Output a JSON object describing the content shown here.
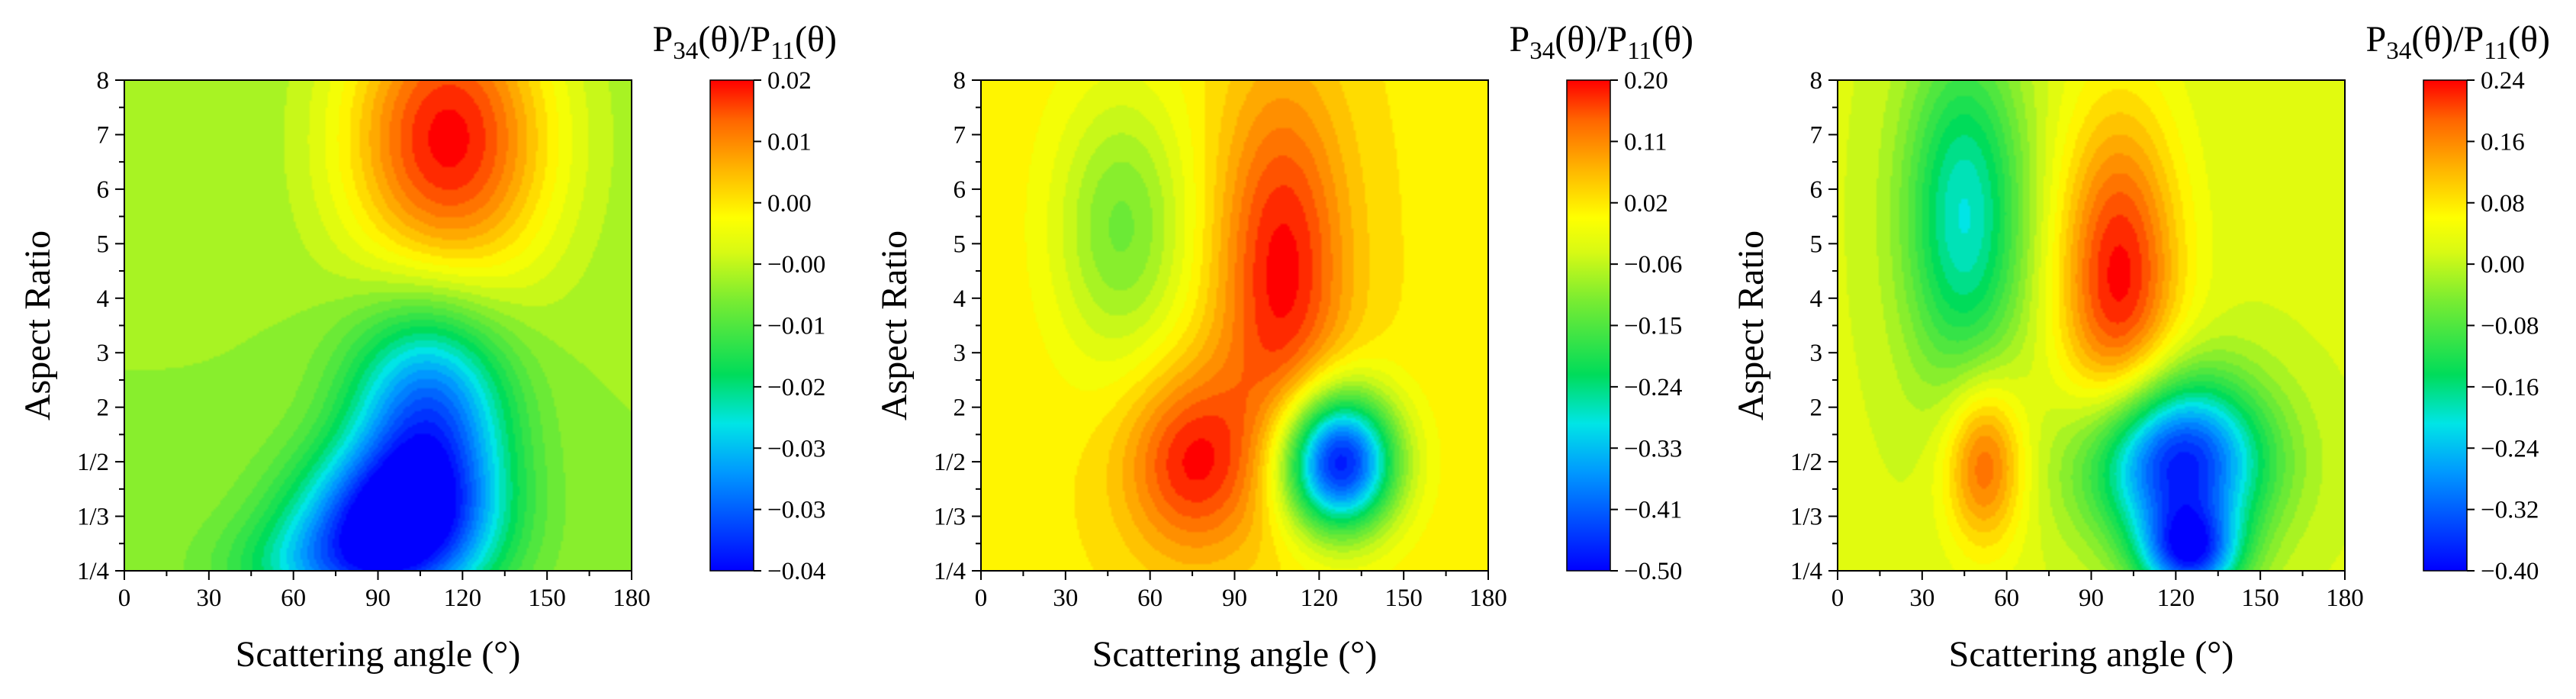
{
  "chart_data": [
    {
      "type": "heatmap",
      "title": "",
      "xlabel": "Scattering angle (°)",
      "ylabel": "Aspect Ratio",
      "colorbar_title": "P34(θ)/P11(θ)",
      "colorbar_title_parts": {
        "p": "P",
        "sub1": "34",
        "mid": "(θ)/P",
        "sub2": "11",
        "end": "(θ)"
      },
      "xlim": [
        0,
        180
      ],
      "x_ticks": [
        "0",
        "30",
        "60",
        "90",
        "120",
        "150",
        "180"
      ],
      "y_ticks": [
        "1/4",
        "1/3",
        "1/2",
        "2",
        "3",
        "4",
        "5",
        "6",
        "7",
        "8"
      ],
      "colorbar_range": [
        -0.04,
        0.02
      ],
      "colorbar_ticks": [
        "0.02",
        "0.01",
        "0.00",
        "−0.00",
        "−0.01",
        "−0.02",
        "−0.03",
        "−0.03",
        "−0.04"
      ],
      "features": [
        {
          "x": 115,
          "y": 7.9,
          "value": 0.02,
          "sx": 26,
          "sy": 2.0
        },
        {
          "x": 108,
          "y": 2.8,
          "value": -0.034,
          "sx": 20,
          "sy": 1.5
        },
        {
          "x": 95,
          "y": 1.0,
          "value": -0.034,
          "sx": 24,
          "sy": 0.9
        },
        {
          "x": 80,
          "y": 0.0,
          "value": -0.022,
          "sx": 28,
          "sy": 0.7
        }
      ],
      "background": -0.005
    },
    {
      "type": "heatmap",
      "title": "",
      "xlabel": "Scattering angle (°)",
      "ylabel": "Aspect Ratio",
      "colorbar_title": "P34(θ)/P11(θ)",
      "colorbar_title_parts": {
        "p": "P",
        "sub1": "34",
        "mid": "(θ)/P",
        "sub2": "11",
        "end": "(θ)"
      },
      "xlim": [
        0,
        180
      ],
      "x_ticks": [
        "0",
        "30",
        "60",
        "90",
        "120",
        "150",
        "180"
      ],
      "y_ticks": [
        "1/4",
        "1/3",
        "1/2",
        "2",
        "3",
        "4",
        "5",
        "6",
        "7",
        "8"
      ],
      "colorbar_range": [
        -0.5,
        0.2
      ],
      "colorbar_ticks": [
        "0.20",
        "0.11",
        "0.02",
        "−0.06",
        "−0.15",
        "−0.24",
        "−0.33",
        "−0.41",
        "−0.50"
      ],
      "features": [
        {
          "x": 107,
          "y": 5.5,
          "value": 0.2,
          "sx": 16,
          "sy": 2.4
        },
        {
          "x": 75,
          "y": 2.0,
          "value": 0.19,
          "sx": 17,
          "sy": 1.2
        },
        {
          "x": 127,
          "y": 2.0,
          "value": -0.5,
          "sx": 14,
          "sy": 0.9
        },
        {
          "x": 50,
          "y": 6.3,
          "value": -0.12,
          "sx": 17,
          "sy": 1.8
        }
      ],
      "background": 0.02
    },
    {
      "type": "heatmap",
      "title": "",
      "xlabel": "Scattering angle (°)",
      "ylabel": "Aspect Ratio",
      "colorbar_title": "P34(θ)/P11(θ)",
      "colorbar_title_parts": {
        "p": "P",
        "sub1": "34",
        "mid": "(θ)/P",
        "sub2": "11",
        "end": "(θ)"
      },
      "xlim": [
        0,
        180
      ],
      "x_ticks": [
        "0",
        "30",
        "60",
        "90",
        "120",
        "150",
        "180"
      ],
      "y_ticks": [
        "1/4",
        "1/3",
        "1/2",
        "2",
        "3",
        "4",
        "5",
        "6",
        "7",
        "8"
      ],
      "colorbar_range": [
        -0.4,
        0.24
      ],
      "colorbar_ticks": [
        "0.24",
        "0.16",
        "0.08",
        "0.00",
        "−0.08",
        "−0.16",
        "−0.24",
        "−0.32",
        "−0.40"
      ],
      "features": [
        {
          "x": 100,
          "y": 5.3,
          "value": 0.24,
          "sx": 15,
          "sy": 2.2
        },
        {
          "x": 52,
          "y": 2.0,
          "value": 0.2,
          "sx": 10,
          "sy": 1.1
        },
        {
          "x": 120,
          "y": 2.0,
          "value": -0.4,
          "sx": 22,
          "sy": 1.1
        },
        {
          "x": 45,
          "y": 6.5,
          "value": -0.2,
          "sx": 15,
          "sy": 2.2
        },
        {
          "x": 125,
          "y": 0.3,
          "value": -0.3,
          "sx": 12,
          "sy": 0.6
        }
      ],
      "background": 0.02
    }
  ]
}
